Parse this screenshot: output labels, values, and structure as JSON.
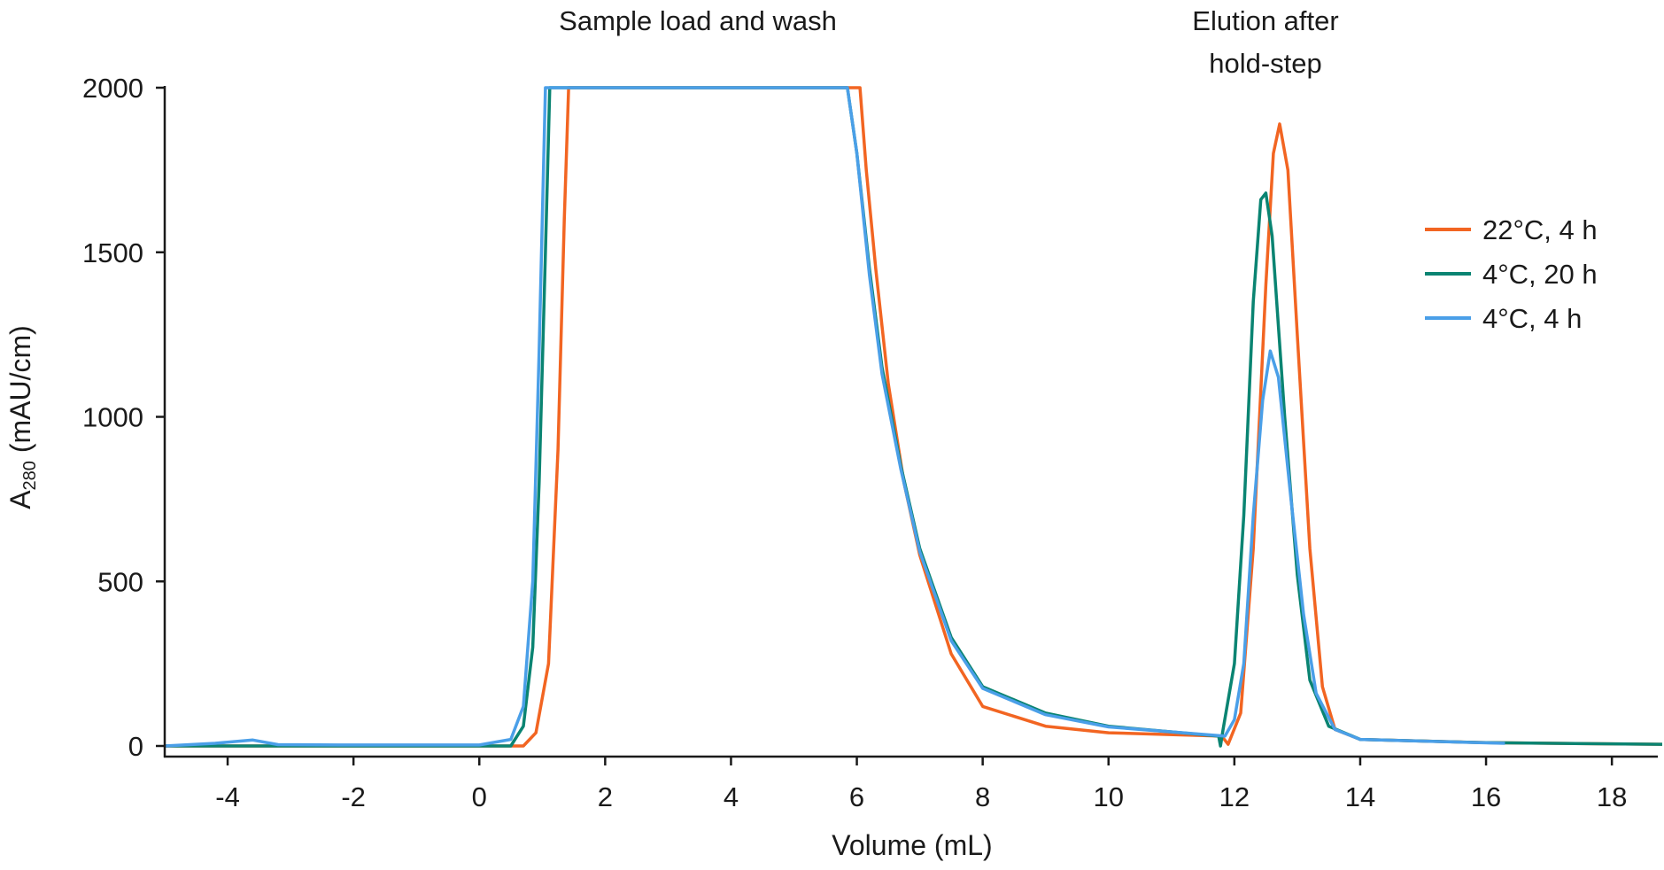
{
  "chart_data": {
    "type": "line",
    "xlabel": "Volume (mL)",
    "ylabel_main": "A",
    "ylabel_sub": "280",
    "ylabel_rest": " (mAU/cm)",
    "xlim": [
      -5,
      18.8
    ],
    "ylim": [
      0,
      2000
    ],
    "xticks": [
      -4,
      -2,
      0,
      2,
      4,
      6,
      8,
      10,
      12,
      14,
      16,
      18
    ],
    "yticks": [
      0,
      500,
      1000,
      1500,
      2000
    ],
    "grid": false,
    "legend_position": "right",
    "annotations": [
      {
        "lines": [
          "Sample load and wash"
        ]
      },
      {
        "lines": [
          "Elution after",
          "hold-step"
        ]
      }
    ],
    "series": [
      {
        "name": "22°C, 4 h",
        "color": "#f26522",
        "x": [
          -5,
          0,
          0.7,
          0.9,
          1.1,
          1.25,
          1.35,
          1.42,
          6.05,
          6.15,
          6.3,
          6.5,
          6.75,
          7,
          7.5,
          8,
          9,
          10,
          11.8,
          11.9,
          12.1,
          12.3,
          12.5,
          12.62,
          12.72,
          12.85,
          13.0,
          13.2,
          13.4,
          13.6,
          14,
          16,
          18.8
        ],
        "y": [
          0,
          0,
          0,
          40,
          250,
          900,
          1600,
          2000,
          2000,
          1750,
          1450,
          1100,
          800,
          580,
          280,
          120,
          60,
          40,
          30,
          5,
          100,
          600,
          1400,
          1800,
          1890,
          1750,
          1250,
          600,
          180,
          50,
          20,
          10,
          5
        ]
      },
      {
        "name": "4°C, 20 h",
        "color": "#0a8472",
        "x": [
          -5,
          0,
          0.5,
          0.7,
          0.85,
          0.95,
          1.05,
          1.12,
          5.85,
          6.0,
          6.2,
          6.4,
          6.7,
          7,
          7.5,
          8,
          9,
          10,
          11.75,
          11.78,
          11.82,
          12.0,
          12.15,
          12.3,
          12.42,
          12.5,
          12.6,
          12.8,
          13.0,
          13.2,
          13.5,
          14,
          16,
          18.8
        ],
        "y": [
          0,
          0,
          0,
          60,
          300,
          800,
          1500,
          2000,
          2000,
          1800,
          1450,
          1150,
          850,
          600,
          330,
          180,
          100,
          60,
          30,
          0,
          50,
          250,
          700,
          1350,
          1660,
          1680,
          1550,
          1000,
          520,
          200,
          60,
          20,
          10,
          5
        ]
      },
      {
        "name": "4°C, 4 h",
        "color": "#4a9fe8",
        "x": [
          -5,
          -4.2,
          -3.6,
          -3.2,
          -2,
          0,
          0.5,
          0.7,
          0.85,
          0.95,
          1.05,
          5.85,
          6.0,
          6.2,
          6.4,
          6.7,
          7,
          7.5,
          8,
          9,
          10,
          11.85,
          12.0,
          12.15,
          12.3,
          12.45,
          12.57,
          12.7,
          12.9,
          13.1,
          13.3,
          13.6,
          14,
          16.3
        ],
        "y": [
          0,
          8,
          18,
          4,
          3,
          3,
          20,
          120,
          500,
          1200,
          2000,
          2000,
          1800,
          1430,
          1130,
          840,
          590,
          320,
          175,
          95,
          58,
          30,
          80,
          250,
          700,
          1050,
          1200,
          1120,
          750,
          400,
          160,
          50,
          20,
          8
        ]
      }
    ]
  }
}
